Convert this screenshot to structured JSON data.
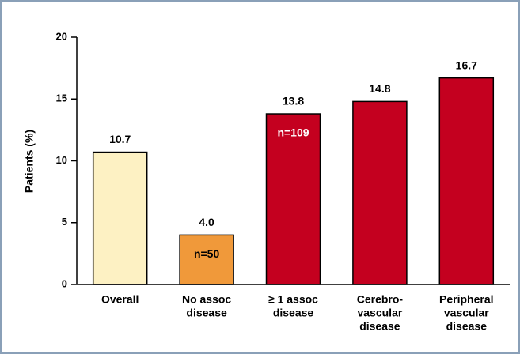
{
  "chart_data": {
    "type": "bar",
    "y_label": "Patients (%)",
    "categories": [
      [
        "Overall"
      ],
      [
        "No assoc",
        "disease"
      ],
      [
        "≥ 1 assoc",
        "disease"
      ],
      [
        "Cerebro-",
        "vascular",
        "disease"
      ],
      [
        "Peripheral",
        "vascular",
        "disease"
      ]
    ],
    "values": [
      10.7,
      4.0,
      13.8,
      14.8,
      16.7
    ],
    "value_labels": [
      "10.7",
      "4.0",
      "13.8",
      "14.8",
      "16.7"
    ],
    "colors": [
      "#fdf1c3",
      "#f0993a",
      "#c4001f",
      "#c4001f",
      "#c4001f"
    ],
    "bar_notes": [
      null,
      "n=50",
      "n=109",
      null,
      null
    ],
    "ylim": [
      0,
      20
    ],
    "yticks": [
      0,
      5,
      10,
      15,
      20
    ]
  }
}
